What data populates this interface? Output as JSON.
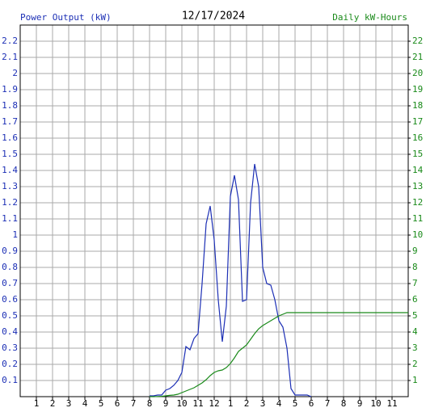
{
  "chart_data": {
    "type": "line",
    "title": "12/17/2024",
    "y_label": "Power Output (kW)",
    "y2_label": "Daily kW-Hours",
    "xlim": [
      0,
      24
    ],
    "xticks": [
      1,
      2,
      3,
      4,
      5,
      6,
      7,
      8,
      9,
      10,
      11,
      12,
      {
        "value": 13,
        "label": "1"
      },
      {
        "value": 14,
        "label": "2"
      },
      {
        "value": 15,
        "label": "3"
      },
      {
        "value": 16,
        "label": "4"
      },
      {
        "value": 17,
        "label": "5"
      },
      {
        "value": 18,
        "label": "6"
      },
      {
        "value": 19,
        "label": "7"
      },
      {
        "value": 20,
        "label": "8"
      },
      {
        "value": 21,
        "label": "9"
      },
      {
        "value": 22,
        "label": "10"
      },
      {
        "value": 23,
        "label": "11"
      }
    ],
    "ylim": [
      0,
      2.3
    ],
    "yticks": [
      0.1,
      0.2,
      0.3,
      0.4,
      0.5,
      0.6,
      0.7,
      0.8,
      0.9,
      1.0,
      1.1,
      1.2,
      1.3,
      1.4,
      1.5,
      1.6,
      1.7,
      1.8,
      1.9,
      2.0,
      2.1,
      2.2
    ],
    "y2lim": [
      0,
      23
    ],
    "y2ticks": [
      1,
      2,
      3,
      4,
      5,
      6,
      7,
      8,
      9,
      10,
      11,
      12,
      13,
      14,
      15,
      16,
      17,
      18,
      19,
      20,
      21,
      22
    ],
    "grid": true,
    "series": [
      {
        "color": "#1c2fb5",
        "axis": "y",
        "x": [
          8,
          8.25,
          8.5,
          8.75,
          9,
          9.25,
          9.5,
          9.75,
          10,
          10.25,
          10.5,
          10.75,
          11,
          11.25,
          11.5,
          11.75,
          12,
          12.25,
          12.5,
          12.75,
          13,
          13.25,
          13.5,
          13.75,
          14,
          14.25,
          14.5,
          14.75,
          15,
          15.25,
          15.5,
          15.75,
          16,
          16.25,
          16.5,
          16.75,
          17,
          17.25,
          17.5,
          17.75,
          18
        ],
        "values": [
          0.005,
          0.005,
          0.01,
          0.01,
          0.04,
          0.05,
          0.07,
          0.1,
          0.15,
          0.31,
          0.29,
          0.36,
          0.39,
          0.7,
          1.07,
          1.18,
          0.97,
          0.6,
          0.34,
          0.56,
          1.24,
          1.37,
          1.22,
          0.59,
          0.6,
          1.2,
          1.44,
          1.3,
          0.8,
          0.7,
          0.69,
          0.6,
          0.47,
          0.43,
          0.3,
          0.05,
          0.01,
          0.01,
          0.01,
          0.01,
          0
        ]
      },
      {
        "color": "#1a8a1a",
        "axis": "y2",
        "x": [
          8,
          8.25,
          8.5,
          8.75,
          9,
          9.25,
          9.5,
          9.75,
          10,
          10.25,
          10.5,
          10.75,
          11,
          11.25,
          11.5,
          11.75,
          12,
          12.25,
          12.5,
          12.75,
          13,
          13.25,
          13.5,
          13.75,
          14,
          14.25,
          14.5,
          14.75,
          15,
          15.25,
          15.5,
          15.75,
          16,
          16.25,
          16.5,
          16.75,
          17,
          24
        ],
        "values": [
          0,
          0,
          0.01,
          0.02,
          0.05,
          0.08,
          0.1,
          0.15,
          0.25,
          0.35,
          0.45,
          0.55,
          0.7,
          0.85,
          1.05,
          1.3,
          1.5,
          1.6,
          1.65,
          1.8,
          2.05,
          2.4,
          2.8,
          3.0,
          3.2,
          3.55,
          3.9,
          4.2,
          4.4,
          4.55,
          4.7,
          4.85,
          5.0,
          5.1,
          5.2,
          5.2,
          5.2,
          5.2
        ]
      }
    ]
  }
}
